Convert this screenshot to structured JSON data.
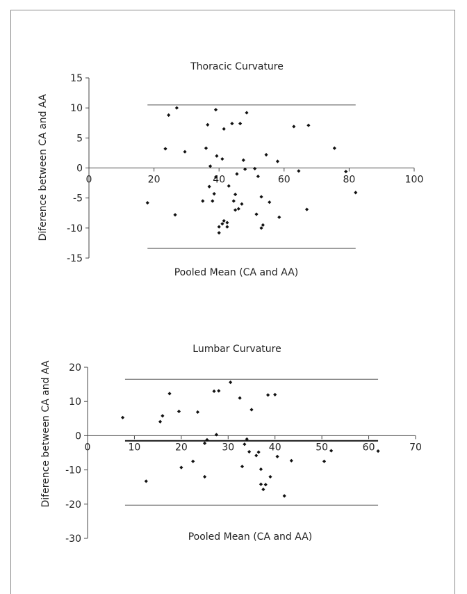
{
  "chart_data": [
    {
      "type": "scatter",
      "title": "Thoracic Curvature",
      "xlabel": "Pooled Mean (CA and AA)",
      "ylabel": "Diference between CA and AA",
      "xlim": [
        0,
        100
      ],
      "ylim": [
        -15,
        15
      ],
      "xticks": [
        "0",
        "20",
        "40",
        "60",
        "80",
        "100"
      ],
      "yticks": [
        "15",
        "10",
        "5",
        "0",
        "-5",
        "-10",
        "-15"
      ],
      "grid": false,
      "lines": [
        {
          "y": 10.5,
          "x": [
            18,
            82
          ]
        },
        {
          "y": -13.4,
          "x": [
            18,
            82
          ]
        }
      ],
      "points": [
        [
          18,
          -5.8
        ],
        [
          23.5,
          3.2
        ],
        [
          24.5,
          8.8
        ],
        [
          26.5,
          -7.8
        ],
        [
          27,
          10
        ],
        [
          29.5,
          2.7
        ],
        [
          35,
          -5.5
        ],
        [
          36,
          3.3
        ],
        [
          36.5,
          7.2
        ],
        [
          37,
          -3.1
        ],
        [
          37.3,
          0.3
        ],
        [
          38,
          -5.5
        ],
        [
          38.5,
          -4.3
        ],
        [
          39,
          9.7
        ],
        [
          39,
          -1.5
        ],
        [
          39.3,
          2
        ],
        [
          40,
          -10.8
        ],
        [
          40,
          -9.8
        ],
        [
          41,
          1.5
        ],
        [
          41,
          -9.3
        ],
        [
          41.5,
          6.5
        ],
        [
          41.5,
          -8.8
        ],
        [
          42.5,
          -9.8
        ],
        [
          42.5,
          -9.1
        ],
        [
          43,
          -3
        ],
        [
          44,
          7.4
        ],
        [
          44.5,
          -5.5
        ],
        [
          45,
          -4.4
        ],
        [
          45,
          -7
        ],
        [
          45.5,
          -1
        ],
        [
          46,
          -6.8
        ],
        [
          46.5,
          7.4
        ],
        [
          47,
          -6
        ],
        [
          47.5,
          1.3
        ],
        [
          48,
          -0.2
        ],
        [
          48.5,
          9.2
        ],
        [
          51,
          -0.1
        ],
        [
          51.5,
          -7.7
        ],
        [
          52,
          -1.4
        ],
        [
          53,
          -10
        ],
        [
          53,
          -4.8
        ],
        [
          53.5,
          -9.5
        ],
        [
          54.5,
          2.2
        ],
        [
          55.5,
          -5.7
        ],
        [
          58,
          1.1
        ],
        [
          58.5,
          -8.2
        ],
        [
          63,
          6.9
        ],
        [
          64.5,
          -0.5
        ],
        [
          67,
          -6.9
        ],
        [
          67.5,
          7.1
        ],
        [
          75.5,
          3.3
        ],
        [
          79,
          -0.6
        ],
        [
          82,
          -4.1
        ]
      ]
    },
    {
      "type": "scatter",
      "title": "Lumbar Curvature",
      "xlabel": "Pooled Mean (CA and AA)",
      "ylabel": "Diference between CA and AA",
      "xlim": [
        0,
        70
      ],
      "ylim": [
        -30,
        20
      ],
      "xticks": [
        "0",
        "10",
        "20",
        "30",
        "40",
        "50",
        "60",
        "70"
      ],
      "yticks": [
        "20",
        "10",
        "0",
        "-10",
        "-20",
        "-30"
      ],
      "grid": false,
      "lines": [
        {
          "y": 16.5,
          "x": [
            8,
            62
          ],
          "bold": false
        },
        {
          "y": -1.5,
          "x": [
            8,
            62
          ],
          "bold": true
        },
        {
          "y": -20.3,
          "x": [
            8,
            62
          ],
          "bold": false
        }
      ],
      "points": [
        [
          7.5,
          5.3
        ],
        [
          12.5,
          -13.3
        ],
        [
          15.5,
          4.1
        ],
        [
          16,
          5.8
        ],
        [
          17.5,
          12.3
        ],
        [
          19.5,
          7.1
        ],
        [
          20,
          -9.3
        ],
        [
          22.5,
          -7.5
        ],
        [
          23.5,
          6.9
        ],
        [
          25,
          -2.2
        ],
        [
          25.5,
          -1.2
        ],
        [
          25,
          -12
        ],
        [
          27,
          13
        ],
        [
          27.5,
          0.3
        ],
        [
          28,
          13.1
        ],
        [
          30.5,
          15.6
        ],
        [
          32.5,
          11
        ],
        [
          33,
          -9
        ],
        [
          33.5,
          -2.5
        ],
        [
          34,
          -1
        ],
        [
          34.5,
          -4.7
        ],
        [
          35,
          7.6
        ],
        [
          36,
          -5.8
        ],
        [
          36.5,
          -4.8
        ],
        [
          37,
          -9.8
        ],
        [
          37,
          -14.2
        ],
        [
          37.5,
          -15.7
        ],
        [
          38,
          -14.3
        ],
        [
          38.5,
          11.9
        ],
        [
          39,
          -12
        ],
        [
          40,
          12
        ],
        [
          40.5,
          -6.1
        ],
        [
          42,
          -17.6
        ],
        [
          43.5,
          -7.3
        ],
        [
          50.5,
          -7.5
        ],
        [
          52,
          -4.4
        ],
        [
          62,
          -4.5
        ]
      ]
    }
  ]
}
